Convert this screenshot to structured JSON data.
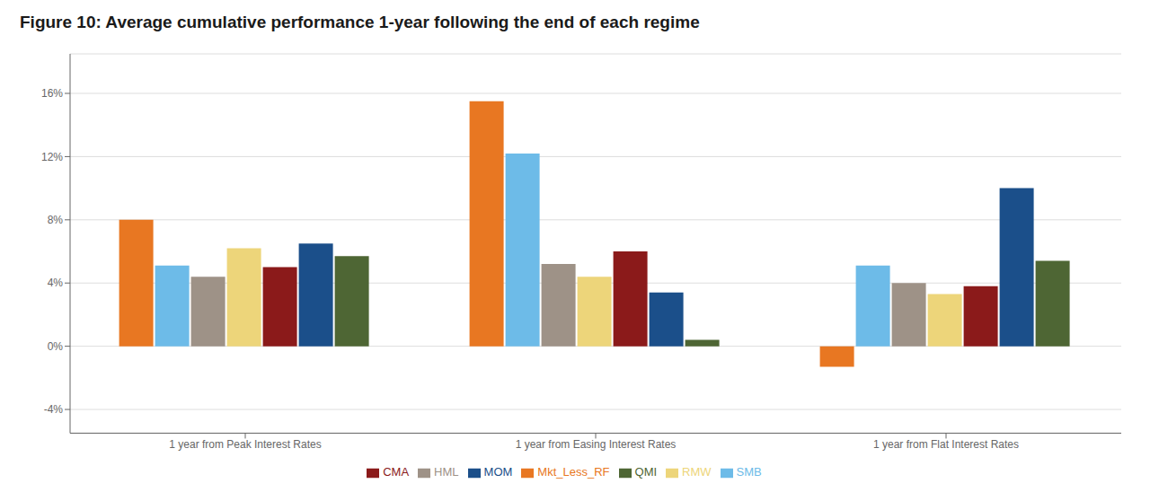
{
  "chart_data": {
    "type": "bar",
    "title": "Figure 10: Average cumulative performance 1-year following the end of each regime",
    "categories": [
      "1 year from Peak Interest Rates",
      "1 year from Easing Interest Rates",
      "1 year from Flat Interest Rates"
    ],
    "series": [
      {
        "name": "Mkt_Less_RF",
        "color": "#E87722",
        "values": [
          0.08,
          0.155,
          -0.013
        ]
      },
      {
        "name": "SMB",
        "color": "#6DBBE8",
        "values": [
          0.051,
          0.122,
          0.051
        ]
      },
      {
        "name": "HML",
        "color": "#9E9287",
        "values": [
          0.044,
          0.052,
          0.04
        ]
      },
      {
        "name": "RMW",
        "color": "#EDD57A",
        "values": [
          0.062,
          0.044,
          0.033
        ]
      },
      {
        "name": "CMA",
        "color": "#8B1A1A",
        "values": [
          0.05,
          0.06,
          0.038
        ]
      },
      {
        "name": "MOM",
        "color": "#1B4F8A",
        "values": [
          0.065,
          0.034,
          0.1
        ]
      },
      {
        "name": "QMI",
        "color": "#4E6634",
        "values": [
          0.057,
          0.004,
          0.054
        ]
      }
    ],
    "ylim": [
      -0.055,
      0.185
    ],
    "yticks": [
      {
        "value": -0.04,
        "label": "-4%"
      },
      {
        "value": 0.0,
        "label": "0%"
      },
      {
        "value": 0.04,
        "label": "4%"
      },
      {
        "value": 0.08,
        "label": "8%"
      },
      {
        "value": 0.12,
        "label": "12%"
      },
      {
        "value": 0.16,
        "label": "16%"
      }
    ],
    "grid": true,
    "legend": "bottom"
  }
}
